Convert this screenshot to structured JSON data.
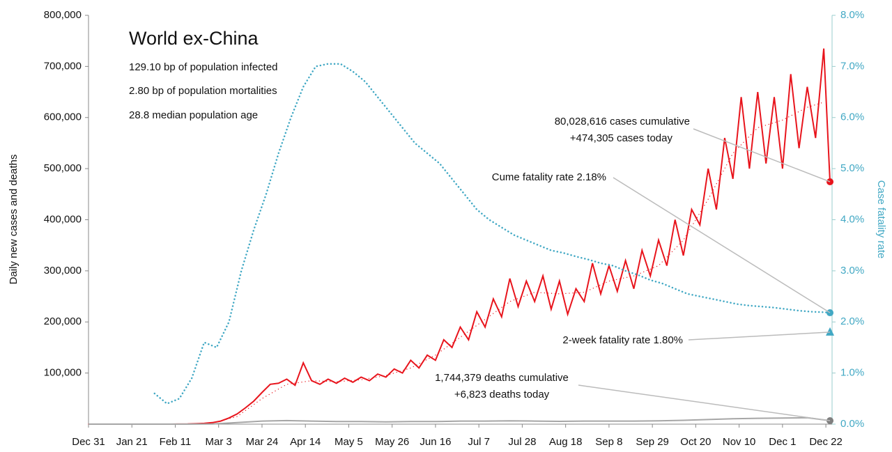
{
  "chart_data": {
    "type": "line",
    "title": "World ex-China",
    "subtitle_lines": [
      "129.10 bp of population infected",
      "2.80 bp of population mortalities",
      "28.8 median population age"
    ],
    "ylabel": "Daily new cases and deaths",
    "y2label": "Case fatality rate",
    "xlim": [
      0,
      360
    ],
    "xticks": [
      {
        "value": 0,
        "label": "Dec 31"
      },
      {
        "value": 21,
        "label": "Jan 21"
      },
      {
        "value": 42,
        "label": "Feb 11"
      },
      {
        "value": 63,
        "label": "Mar 3"
      },
      {
        "value": 84,
        "label": "Mar 24"
      },
      {
        "value": 105,
        "label": "Apr 14"
      },
      {
        "value": 126,
        "label": "May 5"
      },
      {
        "value": 147,
        "label": "May 26"
      },
      {
        "value": 168,
        "label": "Jun 16"
      },
      {
        "value": 189,
        "label": "Jul 7"
      },
      {
        "value": 210,
        "label": "Jul 28"
      },
      {
        "value": 231,
        "label": "Aug 18"
      },
      {
        "value": 252,
        "label": "Sep 8"
      },
      {
        "value": 273,
        "label": "Sep 29"
      },
      {
        "value": 294,
        "label": "Oct 20"
      },
      {
        "value": 315,
        "label": "Nov 10"
      },
      {
        "value": 336,
        "label": "Dec 1"
      },
      {
        "value": 357,
        "label": "Dec 22"
      }
    ],
    "ylim": [
      0,
      800000
    ],
    "yticks": [
      {
        "value": 100000,
        "label": "100,000"
      },
      {
        "value": 200000,
        "label": "200,000"
      },
      {
        "value": 300000,
        "label": "300,000"
      },
      {
        "value": 400000,
        "label": "400,000"
      },
      {
        "value": 500000,
        "label": "500,000"
      },
      {
        "value": 600000,
        "label": "600,000"
      },
      {
        "value": 700000,
        "label": "700,000"
      },
      {
        "value": 800000,
        "label": "800,000"
      }
    ],
    "y2lim": [
      0,
      8
    ],
    "y2ticks": [
      {
        "value": 0,
        "label": "0.0%"
      },
      {
        "value": 1,
        "label": "1.0%"
      },
      {
        "value": 2,
        "label": "2.0%"
      },
      {
        "value": 3,
        "label": "3.0%"
      },
      {
        "value": 4,
        "label": "4.0%"
      },
      {
        "value": 5,
        "label": "5.0%"
      },
      {
        "value": 6,
        "label": "6.0%"
      },
      {
        "value": 7,
        "label": "7.0%"
      },
      {
        "value": 8,
        "label": "8.0%"
      }
    ],
    "series": [
      {
        "color": "#e8141c",
        "style": "solid",
        "end_marker": "circle",
        "x": [
          0,
          4,
          8,
          12,
          16,
          20,
          24,
          28,
          32,
          36,
          40,
          44,
          48,
          52,
          56,
          60,
          64,
          68,
          72,
          76,
          80,
          84,
          88,
          92,
          96,
          100,
          104,
          108,
          112,
          116,
          120,
          124,
          128,
          132,
          136,
          140,
          144,
          148,
          152,
          156,
          160,
          164,
          168,
          172,
          176,
          180,
          184,
          188,
          192,
          196,
          200,
          204,
          208,
          212,
          216,
          220,
          224,
          228,
          232,
          236,
          240,
          244,
          248,
          252,
          256,
          260,
          264,
          268,
          272,
          276,
          280,
          284,
          288,
          292,
          296,
          300,
          304,
          308,
          312,
          316,
          320,
          324,
          328,
          332,
          336,
          340,
          344,
          348,
          352,
          356,
          359
        ],
        "values": [
          0,
          0,
          0,
          0,
          0,
          0,
          0,
          0,
          0,
          0,
          0,
          100,
          300,
          800,
          1500,
          3000,
          6000,
          12000,
          20000,
          32000,
          45000,
          62000,
          78000,
          80000,
          88000,
          76000,
          120000,
          85000,
          78000,
          88000,
          80000,
          90000,
          82000,
          92000,
          85000,
          98000,
          92000,
          108000,
          100000,
          125000,
          110000,
          135000,
          125000,
          165000,
          150000,
          190000,
          165000,
          220000,
          190000,
          245000,
          210000,
          285000,
          230000,
          280000,
          240000,
          290000,
          225000,
          280000,
          215000,
          265000,
          240000,
          315000,
          255000,
          310000,
          260000,
          320000,
          265000,
          340000,
          290000,
          360000,
          310000,
          400000,
          330000,
          420000,
          390000,
          500000,
          420000,
          560000,
          480000,
          640000,
          500000,
          650000,
          510000,
          640000,
          500000,
          685000,
          540000,
          660000,
          560000,
          735000,
          474305
        ]
      },
      {
        "color": "#e8141c",
        "style": "dotted",
        "x": [
          0,
          12,
          24,
          36,
          48,
          60,
          72,
          84,
          96,
          108,
          120,
          132,
          144,
          156,
          168,
          180,
          192,
          204,
          216,
          228,
          240,
          252,
          264,
          276,
          288,
          300,
          312,
          324,
          336,
          348,
          356
        ],
        "values": [
          0,
          0,
          0,
          0,
          300,
          2000,
          15000,
          50000,
          78000,
          85000,
          83000,
          87000,
          95000,
          110000,
          135000,
          170000,
          205000,
          240000,
          258000,
          255000,
          258000,
          280000,
          290000,
          310000,
          360000,
          440000,
          530000,
          580000,
          595000,
          620000,
          630000
        ]
      },
      {
        "color": "#a6a6a6",
        "style": "solid",
        "end_marker": "circle",
        "marker_color": "#7f7f7f",
        "x": [
          0,
          12,
          24,
          36,
          48,
          60,
          72,
          84,
          96,
          108,
          120,
          132,
          144,
          156,
          168,
          180,
          192,
          204,
          216,
          228,
          240,
          252,
          264,
          276,
          288,
          300,
          312,
          324,
          336,
          348,
          359
        ],
        "values": [
          0,
          0,
          0,
          0,
          0,
          300,
          3000,
          6000,
          7000,
          6000,
          5000,
          5000,
          4500,
          5000,
          5000,
          6000,
          6000,
          6500,
          6000,
          5500,
          6000,
          6000,
          6000,
          6500,
          7500,
          9000,
          10500,
          11500,
          12000,
          12500,
          6823
        ]
      },
      {
        "color": "#41a8c4",
        "style": "dotted",
        "axis": "y2",
        "end_marker": "circle",
        "x": [
          32,
          38,
          44,
          50,
          56,
          62,
          68,
          74,
          80,
          86,
          92,
          98,
          104,
          110,
          116,
          122,
          128,
          134,
          140,
          146,
          152,
          158,
          164,
          170,
          176,
          182,
          188,
          194,
          200,
          206,
          212,
          218,
          224,
          230,
          236,
          242,
          248,
          254,
          260,
          266,
          272,
          278,
          284,
          290,
          296,
          302,
          308,
          314,
          320,
          326,
          332,
          338,
          344,
          350,
          356,
          359
        ],
        "values": [
          0.6,
          0.4,
          0.5,
          0.9,
          1.6,
          1.5,
          2.0,
          3.0,
          3.8,
          4.5,
          5.3,
          6.0,
          6.6,
          7.0,
          7.05,
          7.05,
          6.9,
          6.7,
          6.4,
          6.1,
          5.8,
          5.5,
          5.3,
          5.1,
          4.8,
          4.5,
          4.2,
          4.0,
          3.85,
          3.7,
          3.6,
          3.5,
          3.4,
          3.35,
          3.28,
          3.22,
          3.15,
          3.1,
          3.0,
          2.92,
          2.82,
          2.75,
          2.65,
          2.55,
          2.5,
          2.45,
          2.4,
          2.35,
          2.32,
          2.3,
          2.28,
          2.25,
          2.22,
          2.2,
          2.19,
          2.18
        ]
      },
      {
        "color": "#41a8c4",
        "style": "none",
        "axis": "y2",
        "end_marker": "triangle",
        "x": [
          359
        ],
        "values": [
          1.8
        ]
      }
    ],
    "annotations": [
      {
        "lines": [
          "80,028,616 cases cumulative",
          "+474,305 cases today"
        ],
        "series": 0
      },
      {
        "lines": [
          "Cume fatality rate 2.18%"
        ],
        "series": 3
      },
      {
        "lines": [
          "2-week fatality rate 1.80%"
        ],
        "series": 4
      },
      {
        "lines": [
          "1,744,379 deaths cumulative",
          "+6,823 deaths today"
        ],
        "series": 2
      }
    ]
  }
}
